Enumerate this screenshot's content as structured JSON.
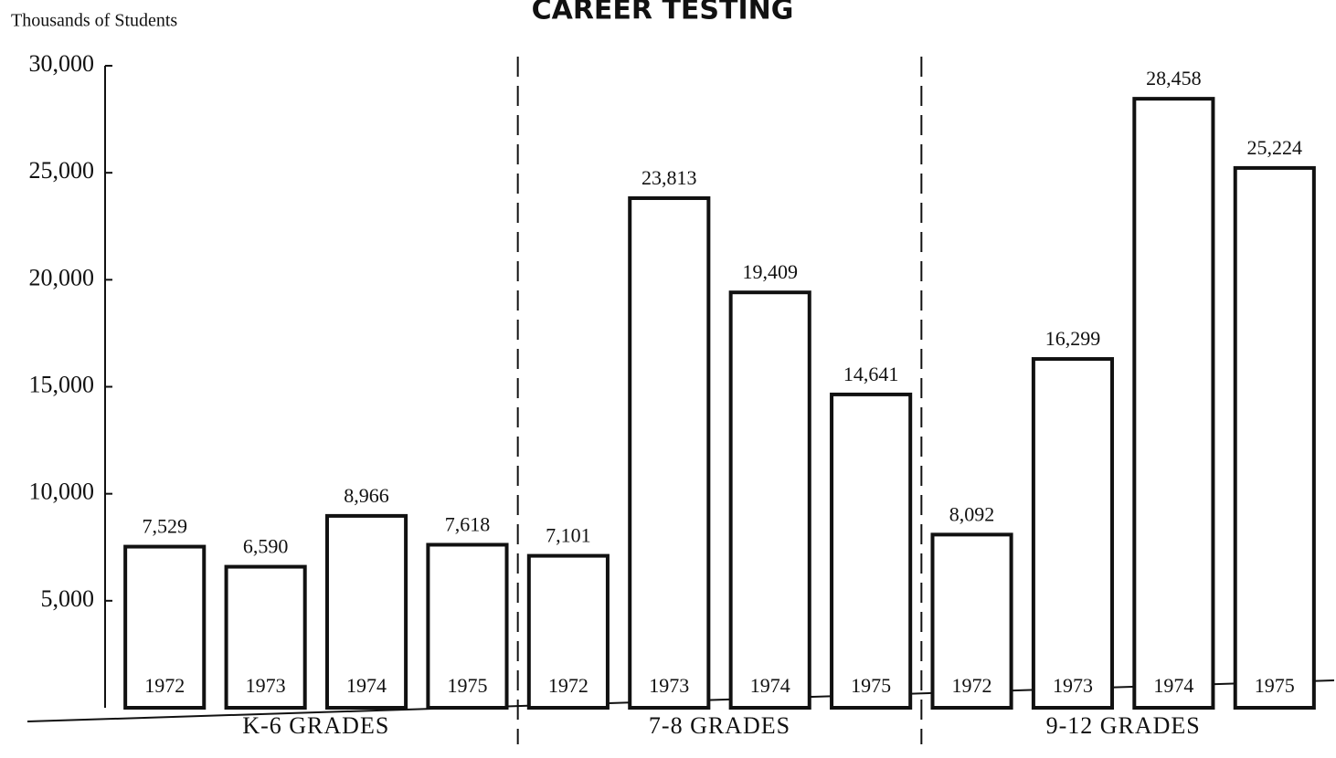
{
  "chart_data": {
    "type": "bar",
    "title": "CAREER TESTING",
    "y_label": "Thousands of Students",
    "ylim": [
      0,
      30000
    ],
    "yticks": [
      {
        "value": 5000,
        "label": "5,000"
      },
      {
        "value": 10000,
        "label": "10,000"
      },
      {
        "value": 15000,
        "label": "15,000"
      },
      {
        "value": 20000,
        "label": "20,000"
      },
      {
        "value": 25000,
        "label": "25,000"
      },
      {
        "value": 30000,
        "label": "30,000"
      }
    ],
    "color": "#ffffff",
    "grid": false,
    "groups": [
      {
        "name": "K-6 GRADES",
        "categories": [
          "1972",
          "1973",
          "1974",
          "1975"
        ],
        "values": [
          7529,
          6590,
          8966,
          7618
        ],
        "value_labels": [
          "7,529",
          "6,590",
          "8,966",
          "7,618"
        ]
      },
      {
        "name": "7-8 GRADES",
        "categories": [
          "1972",
          "1973",
          "1974",
          "1975"
        ],
        "values": [
          7101,
          23813,
          19409,
          14641
        ],
        "value_labels": [
          "7,101",
          "23,813",
          "19,409",
          "14,641"
        ]
      },
      {
        "name": "9-12 GRADES",
        "categories": [
          "1972",
          "1973",
          "1974",
          "1975"
        ],
        "values": [
          8092,
          16299,
          28458,
          25224
        ],
        "value_labels": [
          "8,092",
          "16,299",
          "28,458",
          "25,224"
        ]
      }
    ]
  }
}
